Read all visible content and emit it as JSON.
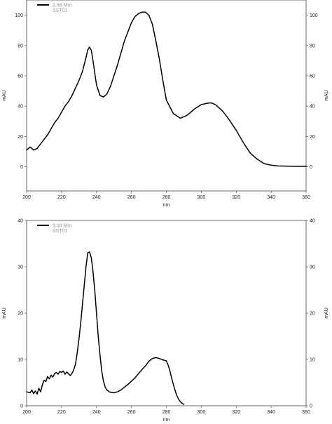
{
  "chart_data": [
    {
      "type": "line",
      "xlabel": "nm",
      "ylabel_left": "mAU",
      "ylabel_right": "mAU",
      "xlim": [
        200,
        360
      ],
      "ylim": [
        -16,
        110
      ],
      "x_ticks": [
        200,
        220,
        240,
        260,
        280,
        300,
        320,
        340,
        360
      ],
      "y_ticks": [
        0,
        20,
        40,
        60,
        80,
        100
      ],
      "legend_position": "top-left",
      "legend": {
        "line1": "2.58 Min",
        "line2": "SST01"
      },
      "series": [
        {
          "x": [
            200,
            202,
            204,
            206,
            208,
            210,
            212,
            214,
            216,
            218,
            220,
            222,
            224,
            226,
            228,
            230,
            232,
            234,
            235,
            236,
            237,
            238,
            240,
            242,
            244,
            246,
            248,
            250,
            252,
            254,
            256,
            258,
            260,
            262,
            264,
            266,
            268,
            270,
            272,
            274,
            276,
            278,
            280,
            284,
            288,
            292,
            296,
            300,
            304,
            306,
            308,
            312,
            316,
            320,
            324,
            328,
            332,
            336,
            340,
            344,
            350,
            356,
            360
          ],
          "values": [
            11,
            13,
            11,
            12,
            15,
            18,
            21,
            25,
            29,
            32,
            36,
            40,
            43,
            47,
            52,
            57,
            63,
            72,
            77,
            79,
            77,
            70,
            54,
            47,
            46,
            48,
            53,
            60,
            67,
            75,
            83,
            89,
            95,
            99,
            101,
            102,
            102,
            100,
            94,
            83,
            71,
            57,
            44,
            35,
            32,
            34,
            38,
            41,
            42,
            42,
            41,
            37,
            31,
            24,
            16,
            9,
            5,
            2,
            1,
            0.5,
            0.3,
            0.2,
            0.2
          ]
        }
      ]
    },
    {
      "type": "line",
      "xlabel": "nm",
      "ylabel_left": "mAU",
      "ylabel_right": "mAU",
      "xlim": [
        200,
        360
      ],
      "ylim": [
        0,
        40
      ],
      "x_ticks": [
        200,
        220,
        240,
        260,
        280,
        300,
        320,
        340,
        360
      ],
      "y_ticks": [
        0,
        10,
        20,
        30,
        40
      ],
      "legend_position": "top-left",
      "legend": {
        "line1": "3.30 Min",
        "line2": "SST01"
      },
      "series": [
        {
          "x": [
            200,
            202,
            203,
            204,
            205,
            206,
            207,
            208,
            209,
            210,
            211,
            212,
            213,
            214,
            215,
            216,
            217,
            218,
            219,
            220,
            221,
            222,
            223,
            224,
            225,
            226,
            227,
            228,
            229,
            230,
            231,
            232,
            233,
            234,
            235,
            236,
            237,
            238,
            239,
            240,
            241,
            242,
            243,
            244,
            245,
            246,
            247,
            248,
            250,
            252,
            254,
            256,
            258,
            260,
            262,
            264,
            266,
            268,
            270,
            272,
            274,
            276,
            278,
            280,
            281,
            282,
            283,
            284,
            285,
            286,
            287,
            288,
            289,
            290
          ],
          "values": [
            3,
            2.8,
            3.4,
            2.6,
            3.2,
            2.5,
            3.8,
            3.0,
            4.5,
            5.5,
            5.2,
            6.3,
            5.8,
            6.6,
            6.2,
            6.9,
            7.2,
            6.8,
            7.4,
            7.2,
            7.5,
            6.8,
            7.3,
            6.9,
            6.5,
            7.0,
            7.8,
            9.0,
            11.5,
            14.5,
            18,
            22,
            26,
            30,
            33,
            33.2,
            32,
            29,
            25,
            20,
            15,
            11,
            7.5,
            5.3,
            4.0,
            3.4,
            3.1,
            2.9,
            2.8,
            3.0,
            3.4,
            4.0,
            4.6,
            5.3,
            6.0,
            6.9,
            7.8,
            8.6,
            9.6,
            10.2,
            10.4,
            10.2,
            9.9,
            9.7,
            8.8,
            7.6,
            6.0,
            4.6,
            3.3,
            2.2,
            1.4,
            0.9,
            0.5,
            0.3
          ]
        }
      ]
    }
  ]
}
